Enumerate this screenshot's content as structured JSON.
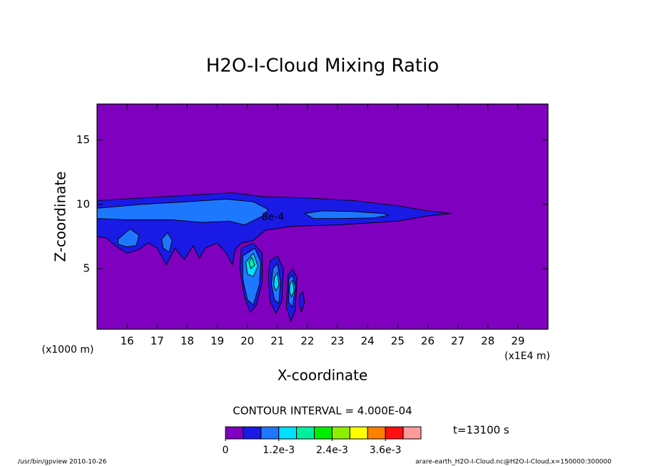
{
  "chart_data": {
    "type": "contour",
    "title": "H2O-I-Cloud Mixing Ratio",
    "xlabel": "X-coordinate",
    "ylabel": "Z-coordinate",
    "x_unit": "(x1E4 m)",
    "y_unit": "(x1000 m)",
    "xlim": [
      15,
      30
    ],
    "ylim": [
      0.3,
      17.8
    ],
    "xticks": [
      16,
      17,
      18,
      19,
      20,
      21,
      22,
      23,
      24,
      25,
      26,
      27,
      28,
      29
    ],
    "yticks": [
      5,
      10,
      15
    ],
    "contour_label": {
      "text": "8e-4",
      "x": 20.85,
      "y": 9.0
    },
    "contour_interval": "CONTOUR INTERVAL = 4.000E-04",
    "time_label": "t=13100 s",
    "footer_left": "/usr/bin/gpview  2010-10-26",
    "footer_right": "arare-earth_H2O-I-Cloud.nc@H2O-I-Cloud,x=150000:300000",
    "colorbar": {
      "lim": [
        0,
        0.0044
      ],
      "colors": [
        "#7f00bf",
        "#1a1ae6",
        "#1e78ff",
        "#00e1ff",
        "#00f0a0",
        "#00ee00",
        "#8cf000",
        "#ffff00",
        "#ff8000",
        "#ff1010",
        "#ff9a9a"
      ],
      "ticks": [
        {
          "value": 0,
          "label": "0"
        },
        {
          "value": 0.0012,
          "label": "1.2e-3"
        },
        {
          "value": 0.0024,
          "label": "2.4e-3"
        },
        {
          "value": 0.0036,
          "label": "3.6e-3"
        }
      ]
    },
    "regions": [
      {
        "level": 0.0004,
        "points": [
          [
            15,
            10.3
          ],
          [
            16.5,
            10.5
          ],
          [
            18,
            10.7
          ],
          [
            19.5,
            10.9
          ],
          [
            20.5,
            10.6
          ],
          [
            22,
            10.5
          ],
          [
            23.5,
            10.3
          ],
          [
            25,
            9.9
          ],
          [
            26,
            9.5
          ],
          [
            26.8,
            9.3
          ],
          [
            26,
            9.1
          ],
          [
            25,
            8.7
          ],
          [
            23,
            8.4
          ],
          [
            21.5,
            8.3
          ],
          [
            20.6,
            8.0
          ],
          [
            20.2,
            7.2
          ],
          [
            19.8,
            7.0
          ],
          [
            19.6,
            6.5
          ],
          [
            19.5,
            5.3
          ],
          [
            19.3,
            6.2
          ],
          [
            19,
            7.0
          ],
          [
            18.6,
            6.6
          ],
          [
            18.4,
            5.8
          ],
          [
            18.2,
            6.8
          ],
          [
            17.9,
            5.7
          ],
          [
            17.6,
            6.6
          ],
          [
            17.3,
            5.3
          ],
          [
            17.0,
            6.6
          ],
          [
            16.7,
            7.0
          ],
          [
            16.4,
            6.5
          ],
          [
            16,
            6.2
          ],
          [
            15.6,
            6.8
          ],
          [
            15.3,
            7.4
          ],
          [
            15,
            7.5
          ]
        ]
      },
      {
        "level": 0.0004,
        "points": [
          [
            19.8,
            6.6
          ],
          [
            20.2,
            7.0
          ],
          [
            20.5,
            6.2
          ],
          [
            20.5,
            4.0
          ],
          [
            20.3,
            2.2
          ],
          [
            20.1,
            1.6
          ],
          [
            19.9,
            2.8
          ],
          [
            19.75,
            5.0
          ]
        ]
      },
      {
        "level": 0.0004,
        "points": [
          [
            20.75,
            5.6
          ],
          [
            21.0,
            6.0
          ],
          [
            21.2,
            5.0
          ],
          [
            21.15,
            2.5
          ],
          [
            20.95,
            1.5
          ],
          [
            20.75,
            2.5
          ],
          [
            20.7,
            4.5
          ]
        ]
      },
      {
        "level": 0.0004,
        "points": [
          [
            21.35,
            4.5
          ],
          [
            21.5,
            5.0
          ],
          [
            21.65,
            4.3
          ],
          [
            21.6,
            1.8
          ],
          [
            21.45,
            0.9
          ],
          [
            21.3,
            2.0
          ]
        ]
      },
      {
        "level": 0.0004,
        "points": [
          [
            21.75,
            3.0
          ],
          [
            21.85,
            3.2
          ],
          [
            21.9,
            2.4
          ],
          [
            21.8,
            1.6
          ],
          [
            21.72,
            2.3
          ]
        ]
      },
      {
        "level": 0.0008,
        "points": [
          [
            15,
            9.7
          ],
          [
            16.5,
            10
          ],
          [
            18,
            10.2
          ],
          [
            19.3,
            10.4
          ],
          [
            20.2,
            10.2
          ],
          [
            20.7,
            9.6
          ],
          [
            20.5,
            9.1
          ],
          [
            19.9,
            8.4
          ],
          [
            19.4,
            8.7
          ],
          [
            18.5,
            8.6
          ],
          [
            17.5,
            8.8
          ],
          [
            16,
            8.8
          ],
          [
            15,
            8.9
          ]
        ]
      },
      {
        "level": 0.0008,
        "points": [
          [
            21.9,
            9.3
          ],
          [
            22.5,
            9.5
          ],
          [
            23.5,
            9.45
          ],
          [
            24.5,
            9.3
          ],
          [
            24.7,
            9.15
          ],
          [
            24.2,
            8.95
          ],
          [
            23,
            8.9
          ],
          [
            22.2,
            8.9
          ]
        ]
      },
      {
        "level": 0.0008,
        "points": [
          [
            15.7,
            7.3
          ],
          [
            16.1,
            8.1
          ],
          [
            16.4,
            7.6
          ],
          [
            16.3,
            6.8
          ],
          [
            16.0,
            6.7
          ],
          [
            15.7,
            6.9
          ]
        ]
      },
      {
        "level": 0.0008,
        "points": [
          [
            17.15,
            7.3
          ],
          [
            17.35,
            7.8
          ],
          [
            17.5,
            7.2
          ],
          [
            17.4,
            6.3
          ],
          [
            17.2,
            6.6
          ]
        ]
      },
      {
        "level": 0.0008,
        "points": [
          [
            19.85,
            6.0
          ],
          [
            20.25,
            6.6
          ],
          [
            20.45,
            5.5
          ],
          [
            20.4,
            3.8
          ],
          [
            20.2,
            2.2
          ],
          [
            20.0,
            2.6
          ],
          [
            19.85,
            4.2
          ]
        ]
      },
      {
        "level": 0.0008,
        "points": [
          [
            20.85,
            5.0
          ],
          [
            21.0,
            5.4
          ],
          [
            21.1,
            4.0
          ],
          [
            21.05,
            2.3
          ],
          [
            20.9,
            2.6
          ],
          [
            20.8,
            3.8
          ]
        ]
      },
      {
        "level": 0.0008,
        "points": [
          [
            21.38,
            4.2
          ],
          [
            21.5,
            4.5
          ],
          [
            21.6,
            3.6
          ],
          [
            21.5,
            2.0
          ],
          [
            21.38,
            2.4
          ]
        ]
      },
      {
        "level": 0.0012,
        "points": [
          [
            19.95,
            5.5
          ],
          [
            20.2,
            6.2
          ],
          [
            20.35,
            5.2
          ],
          [
            20.2,
            4.4
          ],
          [
            20.0,
            4.6
          ]
        ]
      },
      {
        "level": 0.0012,
        "points": [
          [
            20.9,
            4.3
          ],
          [
            21.0,
            4.7
          ],
          [
            21.05,
            3.7
          ],
          [
            20.95,
            3.3
          ],
          [
            20.88,
            3.7
          ]
        ]
      },
      {
        "level": 0.0012,
        "points": [
          [
            21.42,
            3.8
          ],
          [
            21.5,
            4.1
          ],
          [
            21.55,
            3.3
          ],
          [
            21.47,
            2.8
          ],
          [
            21.4,
            3.2
          ]
        ]
      },
      {
        "level": 0.0016,
        "points": [
          [
            20.05,
            5.5
          ],
          [
            20.15,
            5.9
          ],
          [
            20.25,
            5.3
          ],
          [
            20.12,
            5.0
          ]
        ]
      }
    ]
  }
}
